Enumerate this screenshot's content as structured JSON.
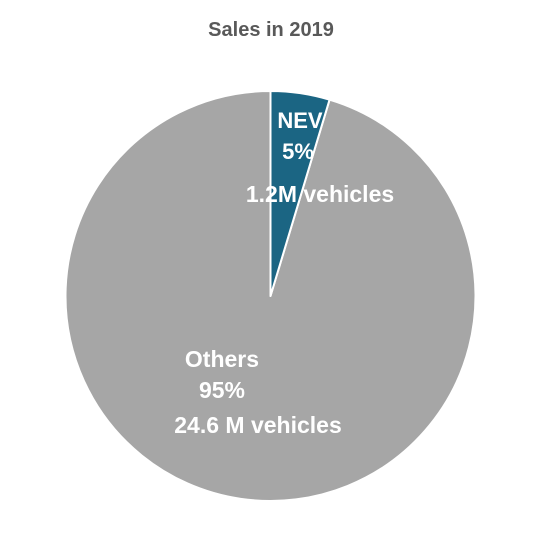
{
  "chart_data": {
    "type": "pie",
    "title": "Sales in 2019",
    "slices": [
      {
        "name": "NEV",
        "percent_label": "5%",
        "volume_label": "1.2M vehicles",
        "value": 1.2,
        "color": "#1b6583"
      },
      {
        "name": "Others",
        "percent_label": "95%",
        "volume_label": "24.6 M vehicles",
        "value": 24.6,
        "color": "#a6a6a6"
      }
    ],
    "start_angle_deg": 0,
    "direction": "clockwise",
    "legend": "none",
    "slice_border_color": "#ffffff"
  }
}
